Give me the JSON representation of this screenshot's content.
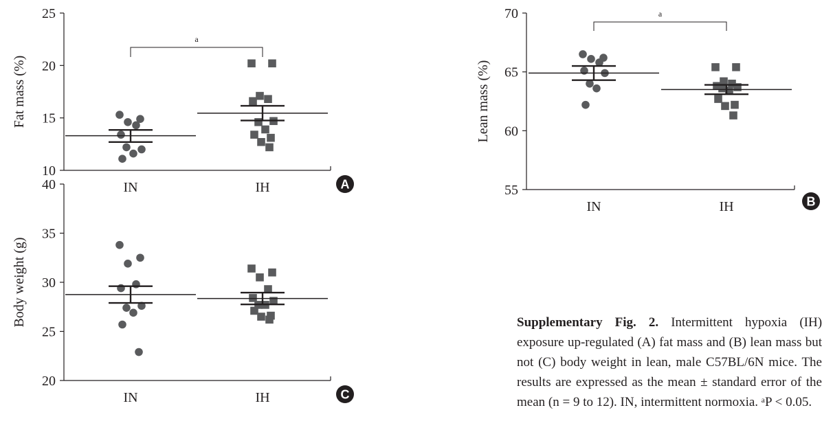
{
  "chart_data": [
    {
      "type": "scatter",
      "panel": "A",
      "ylabel": "Fat mass (%)",
      "ylim": [
        10,
        25
      ],
      "yticks": [
        10,
        15,
        20,
        25
      ],
      "categories": [
        "IN",
        "IH"
      ],
      "significance": {
        "label": "a",
        "between": [
          "IN",
          "IH"
        ]
      },
      "series": [
        {
          "marker": "circle",
          "values": [
            15.3,
            14.9,
            14.6,
            14.3,
            13.4,
            12.0,
            12.2,
            11.6,
            11.1
          ],
          "mean": 13.3,
          "sem_low": 12.7,
          "sem_high": 13.85
        },
        {
          "marker": "square",
          "values": [
            20.2,
            20.2,
            17.1,
            16.8,
            16.6,
            14.7,
            14.6,
            13.9,
            13.4,
            13.1,
            12.7,
            12.2
          ],
          "mean": 15.45,
          "sem_low": 14.75,
          "sem_high": 16.15
        }
      ]
    },
    {
      "type": "scatter",
      "panel": "B",
      "ylabel": "Lean mass (%)",
      "ylim": [
        55,
        70
      ],
      "yticks": [
        55,
        60,
        65,
        70
      ],
      "categories": [
        "IN",
        "IH"
      ],
      "significance": {
        "label": "a",
        "between": [
          "IN",
          "IH"
        ]
      },
      "series": [
        {
          "marker": "circle",
          "values": [
            66.5,
            66.2,
            66.1,
            65.8,
            65.1,
            64.9,
            64.0,
            63.6,
            62.2
          ],
          "mean": 64.9,
          "sem_low": 64.3,
          "sem_high": 65.5
        },
        {
          "marker": "square",
          "values": [
            65.4,
            65.4,
            64.2,
            64.0,
            63.8,
            63.7,
            63.6,
            63.4,
            62.7,
            62.2,
            62.1,
            61.3
          ],
          "mean": 63.5,
          "sem_low": 63.1,
          "sem_high": 63.9
        }
      ]
    },
    {
      "type": "scatter",
      "panel": "C",
      "ylabel": "Body weight (g)",
      "ylim": [
        20,
        40
      ],
      "yticks": [
        20,
        25,
        30,
        35,
        40
      ],
      "categories": [
        "IN",
        "IH"
      ],
      "series": [
        {
          "marker": "circle",
          "values": [
            33.8,
            32.5,
            31.9,
            29.8,
            29.4,
            27.6,
            27.4,
            26.9,
            25.7,
            22.9
          ],
          "mean": 28.75,
          "sem_low": 27.9,
          "sem_high": 29.6
        },
        {
          "marker": "square",
          "values": [
            31.4,
            31.0,
            30.5,
            29.3,
            28.4,
            28.1,
            27.7,
            27.7,
            27.1,
            26.6,
            26.5,
            26.2
          ],
          "mean": 28.35,
          "sem_low": 27.75,
          "sem_high": 28.95
        }
      ]
    }
  ],
  "caption": {
    "bold": "Supplementary Fig. 2.",
    "text": "Intermittent hypoxia (IH) exposure up-regulated (A) fat mass and (B) lean mass but not (C) body weight in lean, male C57BL/6N mice. The results are expressed as the mean ± standard error of the mean (n = 9 to 12). IN, intermittent normoxia. ᵃP < 0.05."
  },
  "colors": {
    "marker": "#5a5b5d",
    "axis": "#231f20",
    "badge": "#231f20",
    "badge_text": "#ffffff"
  }
}
